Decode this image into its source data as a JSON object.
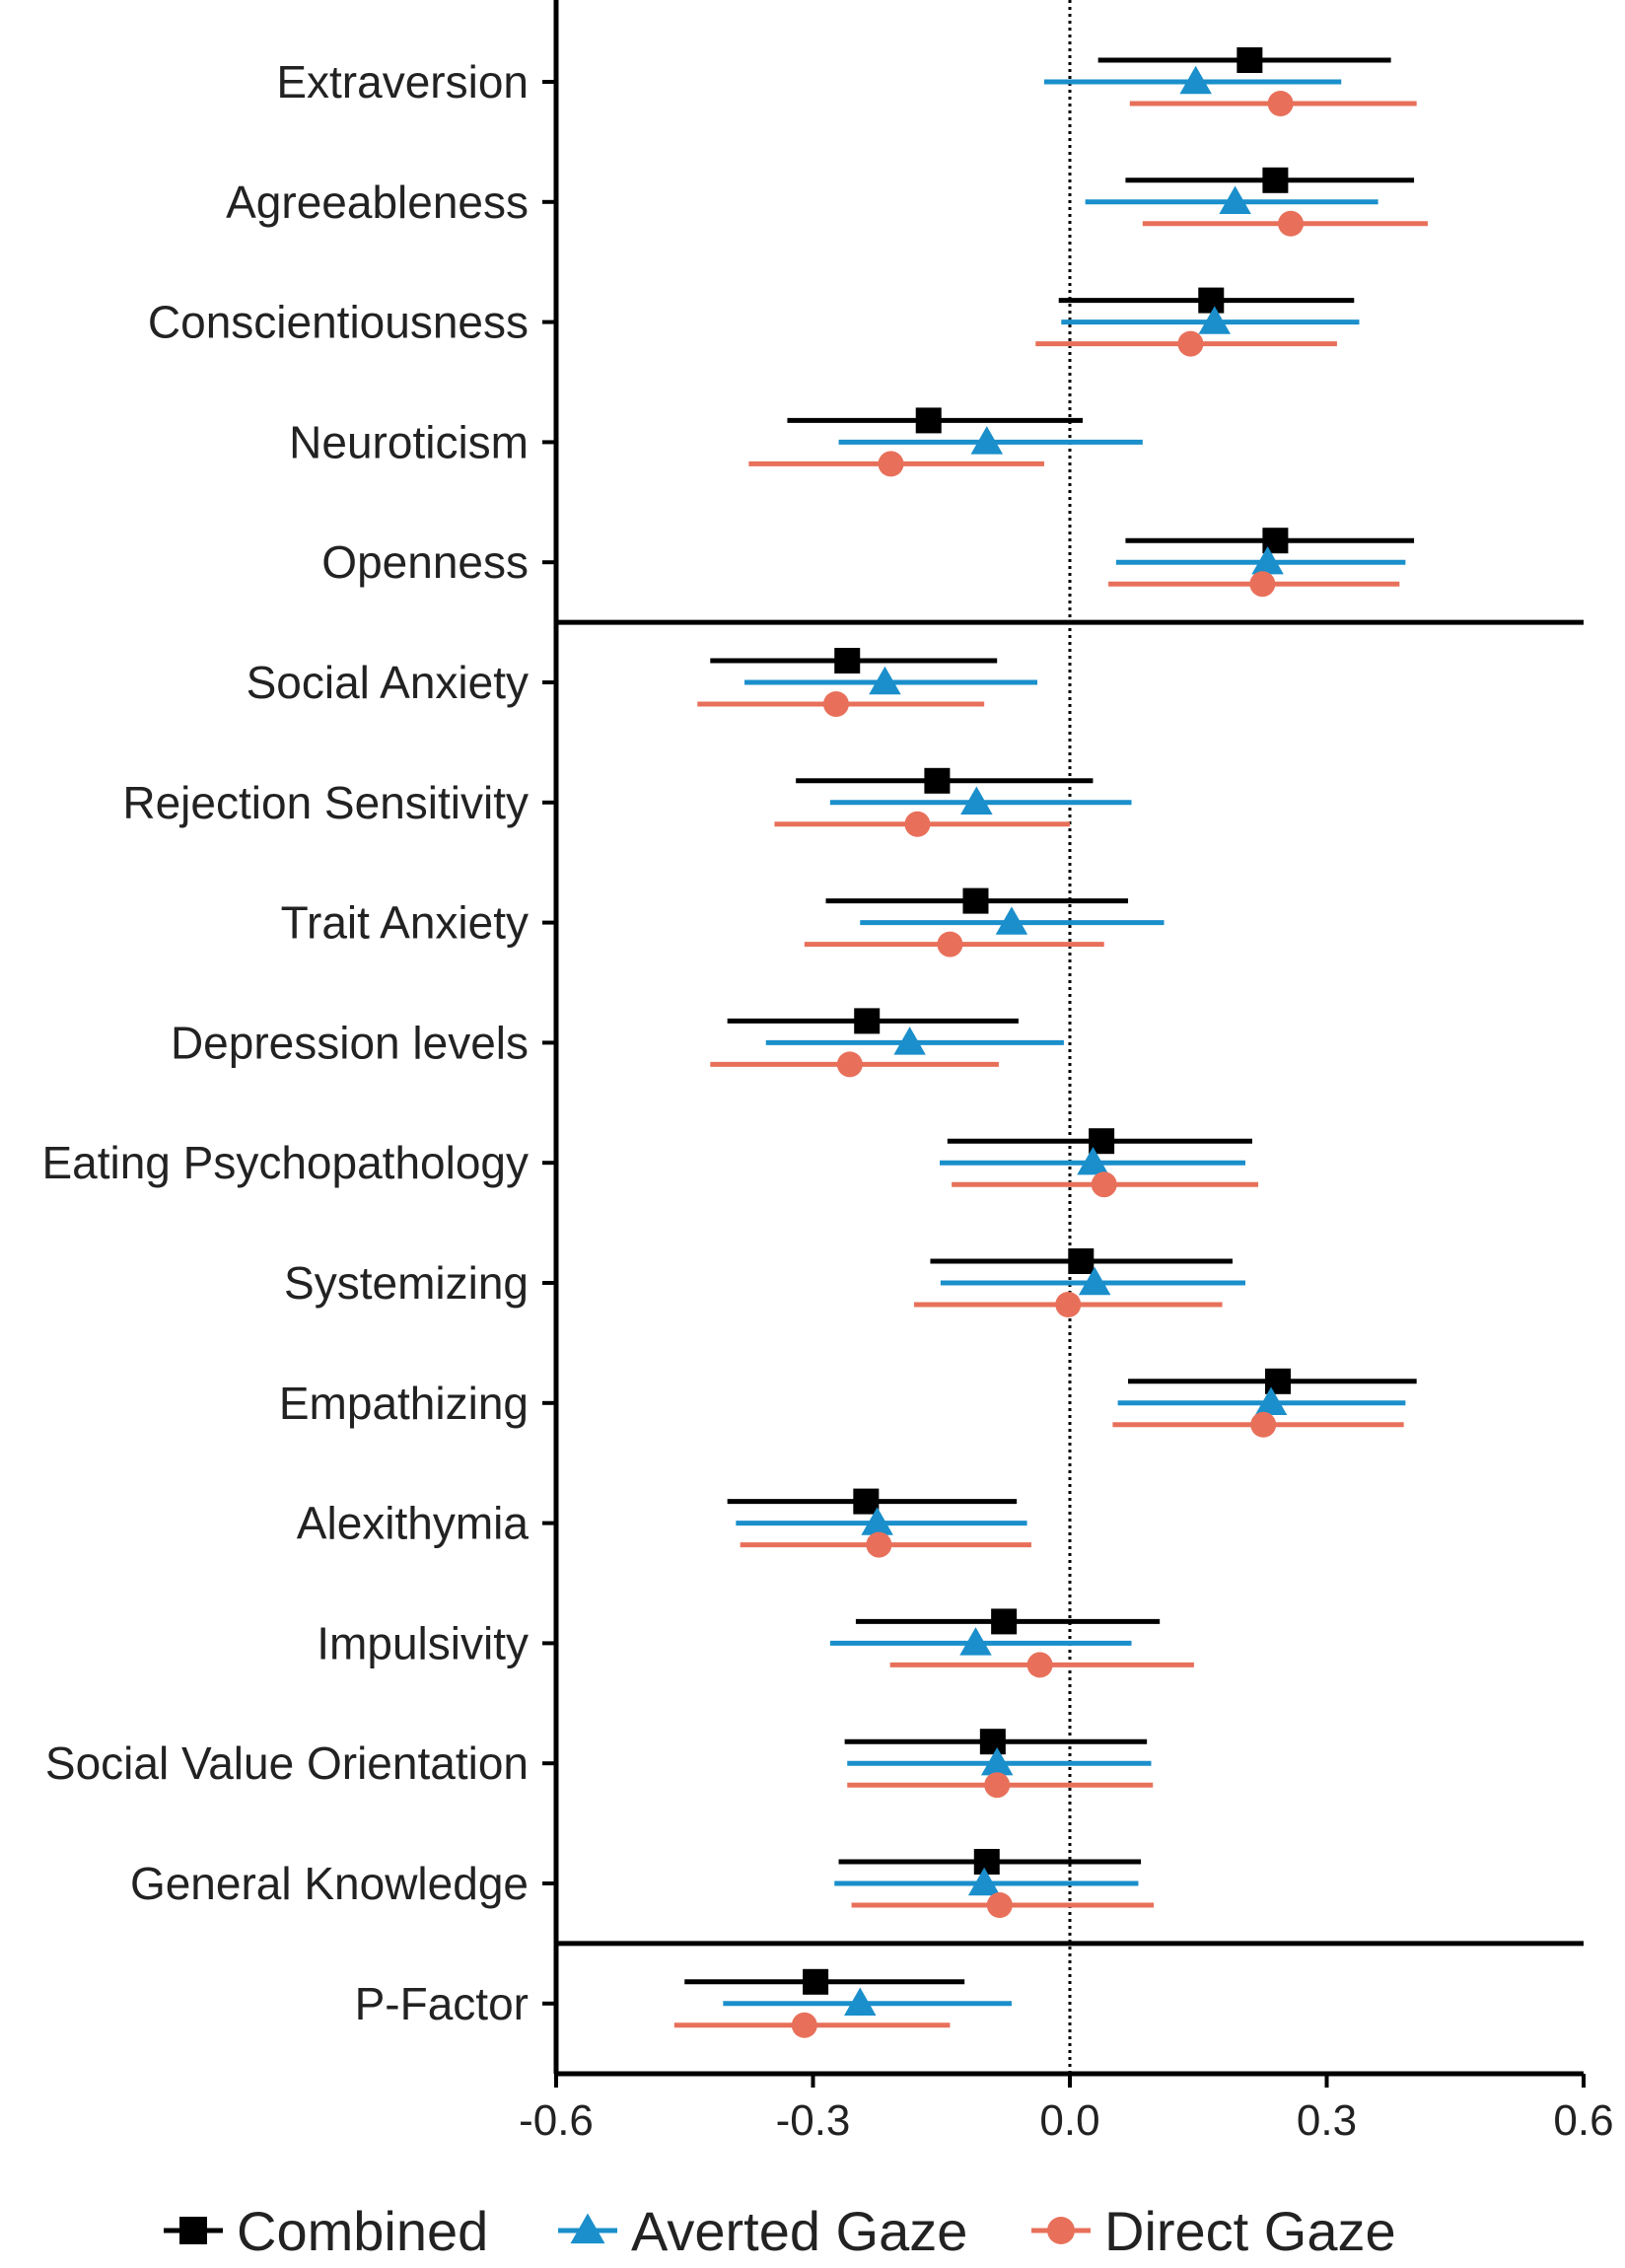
{
  "chart_data": {
    "type": "forest",
    "xlim": [
      -0.6,
      0.6
    ],
    "x_ticks": [
      "-0.6",
      "-0.3",
      "0.0",
      "0.3",
      "0.6"
    ],
    "x_tick_values": [
      -0.6,
      -0.3,
      0.0,
      0.3,
      0.6
    ],
    "reference_line": 0.0,
    "group_separators_after": [
      "Openness",
      "General Knowledge"
    ],
    "legend_position": "bottom",
    "categories": [
      "Extraversion",
      "Agreeableness",
      "Conscientiousness",
      "Neuroticism",
      "Openness",
      "Social Anxiety",
      "Rejection Sensitivity",
      "Trait Anxiety",
      "Depression levels",
      "Eating Psychopathology",
      "Systemizing",
      "Empathizing",
      "Alexithymia",
      "Impulsivity",
      "Social Value Orientation",
      "General Knowledge",
      "P-Factor"
    ],
    "series": [
      {
        "name": "Combined",
        "color": "#000000",
        "marker": "square",
        "estimate": [
          0.21,
          0.24,
          0.165,
          -0.165,
          0.24,
          -0.26,
          -0.155,
          -0.11,
          -0.237,
          0.037,
          0.013,
          0.243,
          -0.238,
          -0.077,
          -0.09,
          -0.097,
          -0.297
        ],
        "ci_low": [
          0.033,
          0.065,
          -0.013,
          -0.33,
          0.065,
          -0.42,
          -0.32,
          -0.285,
          -0.4,
          -0.143,
          -0.163,
          0.068,
          -0.4,
          -0.25,
          -0.263,
          -0.27,
          -0.45
        ],
        "ci_high": [
          0.375,
          0.402,
          0.332,
          0.015,
          0.402,
          -0.085,
          0.027,
          0.068,
          -0.06,
          0.213,
          0.19,
          0.405,
          -0.062,
          0.105,
          0.09,
          0.083,
          -0.123
        ]
      },
      {
        "name": "Averted Gaze",
        "color": "#1A8FCB",
        "marker": "triangle",
        "estimate": [
          0.147,
          0.193,
          0.169,
          -0.097,
          0.231,
          -0.216,
          -0.109,
          -0.068,
          -0.187,
          0.027,
          0.029,
          0.235,
          -0.225,
          -0.11,
          -0.085,
          -0.1,
          -0.245
        ],
        "ci_low": [
          -0.03,
          0.018,
          -0.01,
          -0.27,
          0.054,
          -0.38,
          -0.28,
          -0.245,
          -0.355,
          -0.152,
          -0.151,
          0.056,
          -0.39,
          -0.28,
          -0.26,
          -0.275,
          -0.405
        ],
        "ci_high": [
          0.317,
          0.36,
          0.338,
          0.085,
          0.392,
          -0.038,
          0.072,
          0.11,
          -0.007,
          0.205,
          0.205,
          0.392,
          -0.05,
          0.072,
          0.095,
          0.08,
          -0.068
        ]
      },
      {
        "name": "Direct Gaze",
        "color": "#E8705A",
        "marker": "circle",
        "estimate": [
          0.246,
          0.258,
          0.141,
          -0.209,
          0.225,
          -0.273,
          -0.178,
          -0.14,
          -0.257,
          0.04,
          -0.002,
          0.226,
          -0.223,
          -0.035,
          -0.085,
          -0.082,
          -0.31
        ],
        "ci_low": [
          0.07,
          0.085,
          -0.04,
          -0.375,
          0.045,
          -0.435,
          -0.345,
          -0.31,
          -0.42,
          -0.138,
          -0.182,
          0.05,
          -0.385,
          -0.21,
          -0.26,
          -0.255,
          -0.462
        ],
        "ci_high": [
          0.405,
          0.418,
          0.312,
          -0.03,
          0.385,
          -0.1,
          0.0,
          0.04,
          -0.083,
          0.22,
          0.178,
          0.39,
          -0.045,
          0.145,
          0.097,
          0.098,
          -0.14
        ]
      }
    ]
  }
}
